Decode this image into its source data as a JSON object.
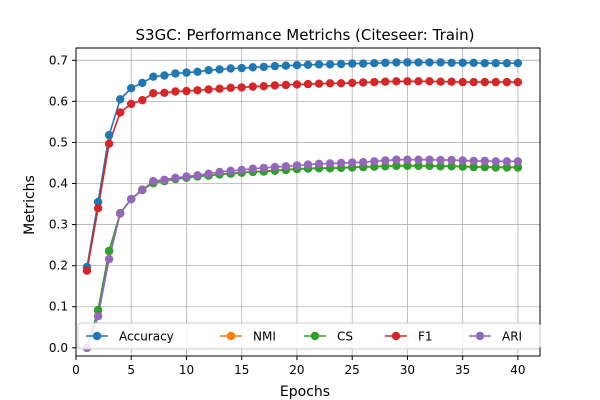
{
  "chart_data": {
    "type": "line",
    "title": "S3GC: Performance Metrichs (Citeseer: Train)",
    "xlabel": "Epochs",
    "ylabel": "Metrichs",
    "xlim": [
      0,
      42
    ],
    "ylim": [
      -0.02,
      0.73
    ],
    "xticks": [
      0,
      5,
      10,
      15,
      20,
      25,
      30,
      35,
      40
    ],
    "yticks": [
      0.0,
      0.1,
      0.2,
      0.3,
      0.4,
      0.5,
      0.6,
      0.7
    ],
    "xtick_labels": [
      "0",
      "5",
      "10",
      "15",
      "20",
      "25",
      "30",
      "35",
      "40"
    ],
    "ytick_labels": [
      "0.0",
      "0.1",
      "0.2",
      "0.3",
      "0.4",
      "0.5",
      "0.6",
      "0.7"
    ],
    "grid": true,
    "legend": {
      "placement": "lower center",
      "columns": 5
    },
    "x": [
      1,
      2,
      3,
      4,
      5,
      6,
      7,
      8,
      9,
      10,
      11,
      12,
      13,
      14,
      15,
      16,
      17,
      18,
      19,
      20,
      21,
      22,
      23,
      24,
      25,
      26,
      27,
      28,
      29,
      30,
      31,
      32,
      33,
      34,
      35,
      36,
      37,
      38,
      39,
      40
    ],
    "series": [
      {
        "name": "Accuracy",
        "color": "#1f77b4",
        "values": [
          0.197,
          0.355,
          0.518,
          0.605,
          0.632,
          0.645,
          0.66,
          0.663,
          0.668,
          0.67,
          0.672,
          0.676,
          0.678,
          0.68,
          0.681,
          0.683,
          0.684,
          0.686,
          0.687,
          0.688,
          0.689,
          0.69,
          0.69,
          0.691,
          0.692,
          0.692,
          0.693,
          0.694,
          0.695,
          0.695,
          0.695,
          0.695,
          0.695,
          0.694,
          0.694,
          0.694,
          0.693,
          0.693,
          0.693,
          0.693
        ]
      },
      {
        "name": "NMI",
        "color": "#ff7f0e",
        "values": [
          0.0,
          0.09,
          0.235,
          0.328,
          0.362,
          0.385,
          0.401,
          0.407,
          0.412,
          0.415,
          0.418,
          0.42,
          0.423,
          0.425,
          0.427,
          0.429,
          0.43,
          0.432,
          0.434,
          0.436,
          0.437,
          0.438,
          0.438,
          0.439,
          0.44,
          0.441,
          0.442,
          0.443,
          0.444,
          0.444,
          0.444,
          0.444,
          0.443,
          0.443,
          0.442,
          0.441,
          0.441,
          0.44,
          0.44,
          0.44
        ]
      },
      {
        "name": "CS",
        "color": "#2ca02c",
        "values": [
          0.0,
          0.092,
          0.236,
          0.328,
          0.362,
          0.385,
          0.401,
          0.406,
          0.411,
          0.414,
          0.417,
          0.419,
          0.422,
          0.424,
          0.426,
          0.428,
          0.429,
          0.431,
          0.433,
          0.435,
          0.436,
          0.437,
          0.437,
          0.438,
          0.439,
          0.44,
          0.441,
          0.442,
          0.443,
          0.443,
          0.443,
          0.443,
          0.442,
          0.442,
          0.441,
          0.44,
          0.44,
          0.439,
          0.439,
          0.439
        ]
      },
      {
        "name": "F1",
        "color": "#d62728",
        "values": [
          0.188,
          0.34,
          0.497,
          0.573,
          0.594,
          0.603,
          0.62,
          0.621,
          0.624,
          0.625,
          0.627,
          0.629,
          0.631,
          0.633,
          0.634,
          0.636,
          0.637,
          0.639,
          0.64,
          0.641,
          0.642,
          0.643,
          0.644,
          0.644,
          0.645,
          0.646,
          0.647,
          0.648,
          0.649,
          0.649,
          0.649,
          0.649,
          0.648,
          0.648,
          0.647,
          0.647,
          0.647,
          0.647,
          0.647,
          0.647
        ]
      },
      {
        "name": "ARI",
        "color": "#9467bd",
        "values": [
          0.0,
          0.077,
          0.216,
          0.327,
          0.362,
          0.384,
          0.406,
          0.409,
          0.414,
          0.417,
          0.42,
          0.424,
          0.428,
          0.431,
          0.433,
          0.436,
          0.438,
          0.44,
          0.442,
          0.444,
          0.446,
          0.448,
          0.449,
          0.45,
          0.451,
          0.452,
          0.454,
          0.456,
          0.458,
          0.458,
          0.458,
          0.458,
          0.457,
          0.457,
          0.456,
          0.455,
          0.455,
          0.454,
          0.454,
          0.454
        ]
      }
    ]
  }
}
